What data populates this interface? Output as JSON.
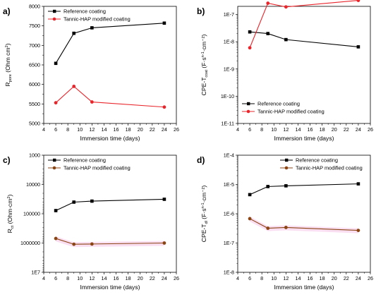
{
  "chart_data": [
    {
      "panel": "a)",
      "type": "line",
      "xlabel": "Immersion time (days)",
      "ylabel_main": "R",
      "ylabel_sub": "pore",
      "ylabel_unit": " (Ohm cm",
      "ylabel_sup": "2",
      "ylabel_end": ")",
      "xlim": [
        4,
        26
      ],
      "xticks": [
        "4",
        "6",
        "8",
        "10",
        "12",
        "14",
        "16",
        "18",
        "20",
        "22",
        "24",
        "26"
      ],
      "yscale": "linear",
      "ylim": [
        5000,
        8000
      ],
      "yticks": [
        "5000",
        "5500",
        "6000",
        "6500",
        "7000",
        "7500",
        "8000"
      ],
      "x": [
        6,
        9,
        12,
        24
      ],
      "series": [
        {
          "name": "Reference coating",
          "color": "#000000",
          "marker": "square",
          "values": [
            6540,
            7310,
            7450,
            7570
          ]
        },
        {
          "name": "Tannic-HAP modified coating",
          "color": "#e8252b",
          "marker": "circle",
          "values": [
            5530,
            5950,
            5550,
            5420
          ]
        }
      ],
      "legend": "top-left"
    },
    {
      "panel": "b)",
      "type": "line",
      "xlabel": "Immersion time (days)",
      "ylabel_main": "CPE-T",
      "ylabel_sub": "coat",
      "ylabel_unit": " (F·s",
      "ylabel_sup": "n-1",
      "ylabel_end": "·cm⁻²)",
      "xlim": [
        4,
        26
      ],
      "xticks": [
        "4",
        "6",
        "8",
        "10",
        "12",
        "14",
        "16",
        "18",
        "20",
        "22",
        "24",
        "26"
      ],
      "yscale": "log",
      "ylim_exp": [
        -11,
        -6.7
      ],
      "ytick_exps": [
        -11,
        -10,
        -9,
        -8,
        -7
      ],
      "x": [
        6,
        9,
        12,
        24
      ],
      "series": [
        {
          "name": "Reference coating",
          "color": "#000000",
          "marker": "square",
          "values": [
            2.3e-08,
            2e-08,
            1.2e-08,
            6.5e-09
          ]
        },
        {
          "name": "Tannic-HAP modified coating",
          "color": "#e8252b",
          "marker": "circle",
          "values": [
            6e-09,
            2.6e-07,
            1.9e-07,
            3.3e-07
          ]
        }
      ],
      "legend": "bottom-left"
    },
    {
      "panel": "c)",
      "type": "line",
      "xlabel": "Immersion time (days)",
      "ylabel_main": "R",
      "ylabel_sub": "ct",
      "ylabel_unit": " (Ohm·cm",
      "ylabel_sup": "2",
      "ylabel_end": ")",
      "xlim": [
        4,
        26
      ],
      "xticks": [
        "4",
        "6",
        "8",
        "10",
        "12",
        "14",
        "16",
        "18",
        "20",
        "22",
        "24",
        "26"
      ],
      "yscale": "log-reversed",
      "ylim_exp": [
        3,
        7
      ],
      "ytick_labels": [
        "1000",
        "10000",
        "100000",
        "1000000",
        "1E7"
      ],
      "x": [
        6,
        9,
        12,
        24
      ],
      "series": [
        {
          "name": "Reference coating",
          "color": "#000000",
          "marker": "square",
          "values": [
            78000,
            40000,
            37000,
            32000
          ]
        },
        {
          "name": "Tannic-HAP modified coating",
          "color": "#8b4513",
          "marker": "circle",
          "values": [
            700000,
            1100000,
            1080000,
            1000000
          ]
        }
      ],
      "legend": "top-left"
    },
    {
      "panel": "d)",
      "type": "line",
      "xlabel": "Immersion time (days)",
      "ylabel_main": "CPE-T",
      "ylabel_sub": "dl",
      "ylabel_unit": " (F·s",
      "ylabel_sup": "n-1",
      "ylabel_end": "·cm⁻²)",
      "xlim": [
        4,
        26
      ],
      "xticks": [
        "4",
        "6",
        "8",
        "10",
        "12",
        "14",
        "16",
        "18",
        "20",
        "22",
        "24",
        "26"
      ],
      "yscale": "log",
      "ylim_exp": [
        -8,
        -4
      ],
      "ytick_exps": [
        -8,
        -7,
        -6,
        -5,
        -4
      ],
      "x": [
        6,
        9,
        12,
        24
      ],
      "series": [
        {
          "name": "Reference coating",
          "color": "#000000",
          "marker": "square",
          "values": [
            4.5e-06,
            8.5e-06,
            9e-06,
            1.05e-05
          ]
        },
        {
          "name": "Tannic-HAP modified coating",
          "color": "#8b4513",
          "marker": "circle",
          "values": [
            6.8e-07,
            3.2e-07,
            3.4e-07,
            2.7e-07
          ]
        }
      ],
      "legend": "top-right"
    }
  ]
}
